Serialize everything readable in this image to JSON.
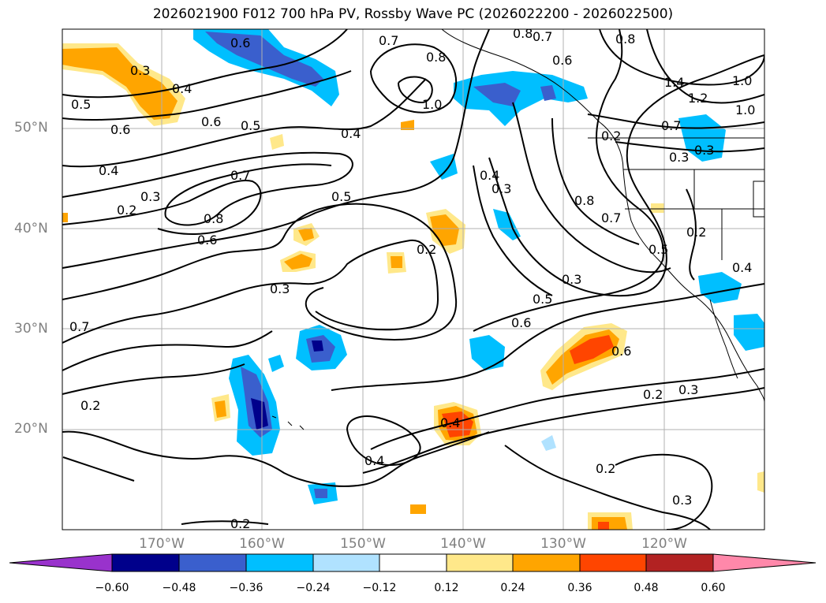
{
  "title": "2026021900 F012 700 hPa PV, Rossby Wave PC (2026022200 - 2026022500)",
  "map": {
    "lat_labels": [
      "50°N",
      "40°N",
      "30°N",
      "20°N"
    ],
    "lon_labels": [
      "170°W",
      "160°W",
      "150°W",
      "140°W",
      "130°W",
      "120°W"
    ],
    "contour_labels": [
      "0.6",
      "0.7",
      "0.8",
      "0.7",
      "0.8",
      "0.6",
      "0.8",
      "0.3",
      "0.4",
      "0.5",
      "1.0",
      "0.6",
      "0.5",
      "0.4",
      "0.6",
      "0.4",
      "0.2",
      "0.3",
      "0.7",
      "0.8",
      "0.6",
      "0.5",
      "0.4",
      "0.3",
      "0.2",
      "0.3",
      "0.7",
      "0.2",
      "0.4",
      "0.2",
      "0.3",
      "0.5",
      "0.6",
      "0.6",
      "0.2",
      "0.3",
      "0.4",
      "0.2",
      "0.3",
      "0.2",
      "0.8",
      "0.7",
      "0.5",
      "0.3",
      "0.2",
      "0.4",
      "1.4",
      "1.2",
      "1.0",
      "1.0",
      "0.7",
      "0.3"
    ]
  },
  "colorbar": {
    "ticks": [
      "−0.60",
      "−0.48",
      "−0.36",
      "−0.24",
      "−0.12",
      "0.12",
      "0.24",
      "0.36",
      "0.48",
      "0.60"
    ],
    "colors": [
      "#9932cc",
      "#00008b",
      "#3a5fcd",
      "#00bfff",
      "#b0e2ff",
      "#ffffff",
      "#ffe88a",
      "#ffa500",
      "#ff4500",
      "#b22222",
      "#ff88aa"
    ]
  }
}
